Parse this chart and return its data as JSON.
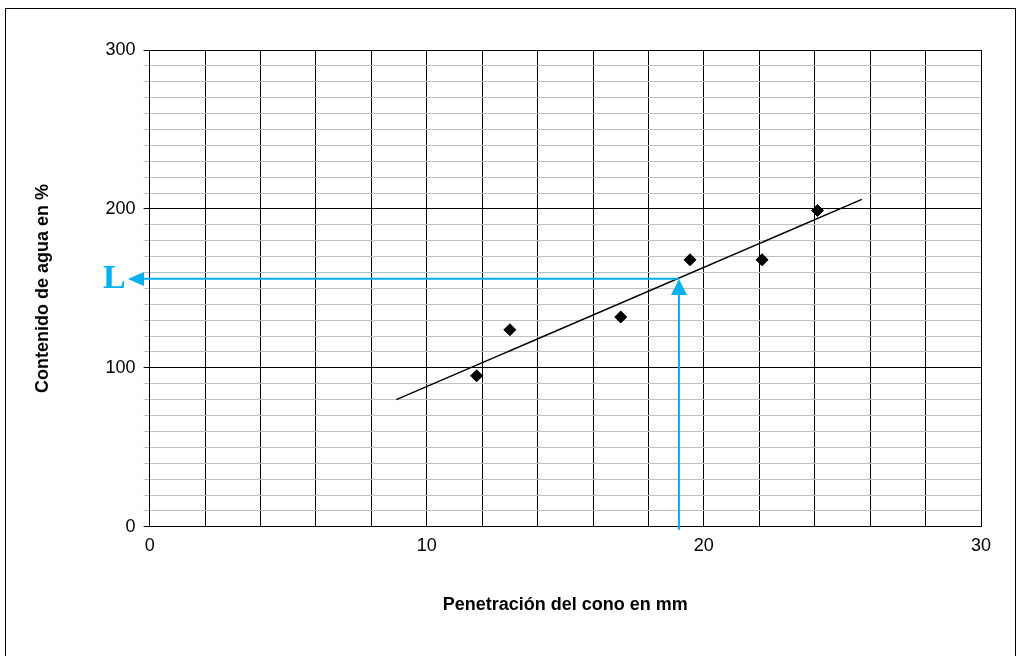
{
  "chart_data": {
    "type": "scatter",
    "xlabel": "Penetración del cono en mm",
    "ylabel": "Contenido de agua en %",
    "series": [
      {
        "color": "#000000",
        "marker": "diamond",
        "x": [
          11.8,
          13.0,
          17.0,
          19.5,
          22.1,
          24.1
        ],
        "values": [
          95,
          124,
          132,
          168,
          168,
          199
        ]
      },
      {
        "type": "line",
        "color": "#000000",
        "marker": "none",
        "x": [
          8.9,
          25.7
        ],
        "values": [
          80,
          206
        ]
      }
    ],
    "xlim": [
      0,
      30
    ],
    "ylim": [
      0,
      300
    ],
    "xticks": [
      0,
      {
        "value": 2,
        "label": null
      },
      {
        "value": 4,
        "label": null
      },
      {
        "value": 6,
        "label": null
      },
      {
        "value": 8,
        "label": null
      },
      10,
      {
        "value": 12,
        "label": null
      },
      {
        "value": 14,
        "label": null
      },
      {
        "value": 16,
        "label": null
      },
      {
        "value": 18,
        "label": null
      },
      20,
      {
        "value": 22,
        "label": null
      },
      {
        "value": 24,
        "label": null
      },
      {
        "value": 26,
        "label": null
      },
      {
        "value": 28,
        "label": null
      },
      30
    ],
    "yticks": [
      0,
      {
        "value": 10,
        "label": null
      },
      {
        "value": 20,
        "label": null
      },
      {
        "value": 30,
        "label": null
      },
      {
        "value": 40,
        "label": null
      },
      {
        "value": 50,
        "label": null
      },
      {
        "value": 60,
        "label": null
      },
      {
        "value": 70,
        "label": null
      },
      {
        "value": 80,
        "label": null
      },
      {
        "value": 90,
        "label": null
      },
      100,
      {
        "value": 110,
        "label": null
      },
      {
        "value": 120,
        "label": null
      },
      {
        "value": 130,
        "label": null
      },
      {
        "value": 140,
        "label": null
      },
      {
        "value": 150,
        "label": null
      },
      {
        "value": 160,
        "label": null
      },
      {
        "value": 170,
        "label": null
      },
      {
        "value": 180,
        "label": null
      },
      {
        "value": 190,
        "label": null
      },
      200,
      {
        "value": 210,
        "label": null
      },
      {
        "value": 220,
        "label": null
      },
      {
        "value": 230,
        "label": null
      },
      {
        "value": 240,
        "label": null
      },
      {
        "value": 250,
        "label": null
      },
      {
        "value": 260,
        "label": null
      },
      {
        "value": 270,
        "label": null
      },
      {
        "value": 280,
        "label": null
      },
      {
        "value": 290,
        "label": null
      },
      300
    ],
    "grid": true,
    "legend": false,
    "ref_lines": [
      {
        "axis": "y",
        "value": 156,
        "label": "L",
        "color": "#00b0f0"
      },
      {
        "axis": "x",
        "value": 19.1,
        "color": "#00b0f0"
      }
    ]
  }
}
